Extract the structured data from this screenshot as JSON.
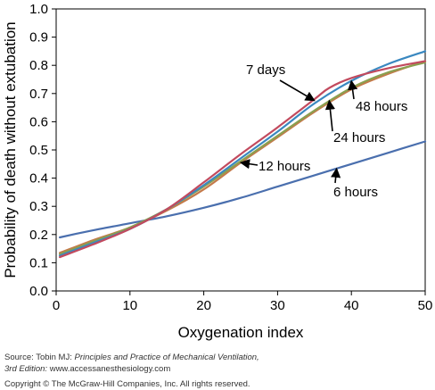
{
  "chart_data": {
    "type": "line",
    "xlabel": "Oxygenation index",
    "ylabel": "Probability of death without extubation",
    "xlim": [
      0,
      50
    ],
    "ylim": [
      0,
      1.0
    ],
    "x_ticks": [
      "0",
      "10",
      "20",
      "30",
      "40",
      "50"
    ],
    "y_ticks": [
      "0.0",
      "0.1",
      "0.2",
      "0.3",
      "0.4",
      "0.5",
      "0.6",
      "0.7",
      "0.8",
      "0.9",
      "1.0"
    ],
    "grid": false,
    "series": [
      {
        "name": "6 hours",
        "color": "#4a6fae",
        "x": [
          0.5,
          5,
          10,
          15,
          20,
          25,
          30,
          35,
          40,
          45,
          50
        ],
        "y": [
          0.19,
          0.215,
          0.24,
          0.265,
          0.295,
          0.33,
          0.37,
          0.41,
          0.45,
          0.49,
          0.53
        ]
      },
      {
        "name": "12 hours",
        "color": "#c47a4a",
        "x": [
          0.5,
          5,
          10,
          15,
          20,
          25,
          30,
          35,
          40,
          45,
          50
        ],
        "y": [
          0.135,
          0.18,
          0.225,
          0.285,
          0.36,
          0.455,
          0.545,
          0.635,
          0.715,
          0.77,
          0.815
        ]
      },
      {
        "name": "24 hours",
        "color": "#8aa050",
        "x": [
          0.5,
          5,
          10,
          15,
          20,
          25,
          30,
          35,
          40,
          45,
          50
        ],
        "y": [
          0.13,
          0.175,
          0.225,
          0.29,
          0.37,
          0.46,
          0.55,
          0.64,
          0.72,
          0.775,
          0.81
        ]
      },
      {
        "name": "48 hours",
        "color": "#3a88c0",
        "x": [
          0.5,
          5,
          10,
          15,
          20,
          25,
          30,
          35,
          40,
          45,
          50
        ],
        "y": [
          0.125,
          0.17,
          0.22,
          0.29,
          0.375,
          0.47,
          0.565,
          0.665,
          0.745,
          0.805,
          0.85
        ]
      },
      {
        "name": "7 days",
        "color": "#c24a5e",
        "x": [
          0.5,
          5,
          10,
          15,
          20,
          25,
          30,
          35,
          37,
          40,
          45,
          50
        ],
        "y": [
          0.12,
          0.165,
          0.22,
          0.29,
          0.385,
          0.485,
          0.58,
          0.68,
          0.72,
          0.755,
          0.79,
          0.815
        ]
      }
    ],
    "annotations": [
      {
        "text": "7 days",
        "series": "7 days"
      },
      {
        "text": "48 hours",
        "series": "48 hours"
      },
      {
        "text": "24 hours",
        "series": "24 hours"
      },
      {
        "text": "12 hours",
        "series": "12 hours"
      },
      {
        "text": "6 hours",
        "series": "6 hours"
      }
    ]
  },
  "footer": {
    "source_prefix": "Source: Tobin MJ: ",
    "source_title": "Principles and Practice of Mechanical Ventilation,",
    "edition": "3rd Edition: ",
    "url": "www.accessanesthesiology.com",
    "copyright": "Copyright © The McGraw-Hill Companies, Inc. All rights reserved."
  }
}
